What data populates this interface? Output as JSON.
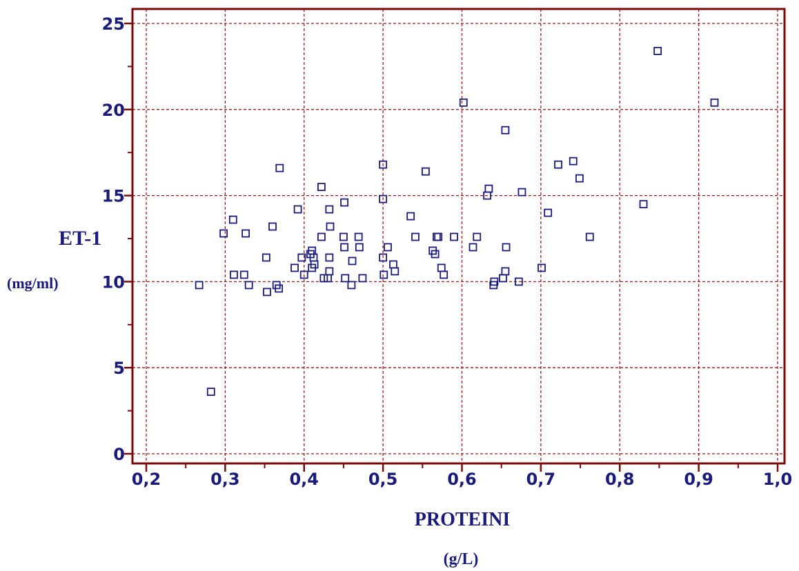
{
  "chart_data": {
    "type": "scatter",
    "xlabel": "PROTEINI",
    "xunit": "(g/L)",
    "ylabel": "ET-1",
    "yunit": "(mg/ml)",
    "xlim": [
      0.2,
      1.0
    ],
    "ylim": [
      0,
      25
    ],
    "grid": true,
    "x_ticks": [
      "0,2",
      "0,3",
      "0,4",
      "0,5",
      "0,6",
      "0,7",
      "0,8",
      "0,9",
      "1,0"
    ],
    "y_ticks": [
      "0",
      "5",
      "10",
      "15",
      "20",
      "25"
    ],
    "colors": {
      "frame": "#7a0a0a",
      "grid": "#9a1a1a",
      "points": "#1a1a7a",
      "text": "#1a1a7a"
    },
    "points": [
      [
        0.267,
        9.8
      ],
      [
        0.282,
        3.6
      ],
      [
        0.298,
        12.8
      ],
      [
        0.31,
        13.6
      ],
      [
        0.311,
        10.4
      ],
      [
        0.324,
        10.4
      ],
      [
        0.326,
        12.8
      ],
      [
        0.33,
        9.8
      ],
      [
        0.352,
        11.4
      ],
      [
        0.353,
        9.4
      ],
      [
        0.36,
        13.2
      ],
      [
        0.365,
        9.8
      ],
      [
        0.368,
        9.6
      ],
      [
        0.369,
        16.6
      ],
      [
        0.388,
        10.8
      ],
      [
        0.392,
        14.2
      ],
      [
        0.397,
        11.4
      ],
      [
        0.4,
        10.4
      ],
      [
        0.408,
        11.6
      ],
      [
        0.41,
        11.8
      ],
      [
        0.41,
        10.8
      ],
      [
        0.412,
        11.4
      ],
      [
        0.413,
        11.0
      ],
      [
        0.422,
        12.6
      ],
      [
        0.422,
        15.5
      ],
      [
        0.425,
        10.2
      ],
      [
        0.43,
        10.2
      ],
      [
        0.432,
        10.6
      ],
      [
        0.432,
        11.4
      ],
      [
        0.432,
        14.2
      ],
      [
        0.433,
        13.2
      ],
      [
        0.45,
        12.6
      ],
      [
        0.451,
        12.0
      ],
      [
        0.451,
        14.6
      ],
      [
        0.452,
        10.2
      ],
      [
        0.46,
        9.8
      ],
      [
        0.461,
        11.2
      ],
      [
        0.469,
        12.6
      ],
      [
        0.47,
        12.0
      ],
      [
        0.474,
        10.2
      ],
      [
        0.5,
        16.8
      ],
      [
        0.5,
        14.8
      ],
      [
        0.5,
        11.4
      ],
      [
        0.501,
        10.4
      ],
      [
        0.506,
        12.0
      ],
      [
        0.513,
        11.0
      ],
      [
        0.515,
        10.6
      ],
      [
        0.535,
        13.8
      ],
      [
        0.541,
        12.6
      ],
      [
        0.554,
        16.4
      ],
      [
        0.563,
        11.8
      ],
      [
        0.566,
        11.6
      ],
      [
        0.568,
        12.6
      ],
      [
        0.57,
        12.6
      ],
      [
        0.574,
        10.8
      ],
      [
        0.577,
        10.4
      ],
      [
        0.59,
        12.6
      ],
      [
        0.602,
        20.4
      ],
      [
        0.614,
        12.0
      ],
      [
        0.619,
        12.6
      ],
      [
        0.632,
        15.0
      ],
      [
        0.634,
        15.4
      ],
      [
        0.64,
        9.8
      ],
      [
        0.641,
        10.0
      ],
      [
        0.652,
        10.2
      ],
      [
        0.655,
        10.6
      ],
      [
        0.655,
        18.8
      ],
      [
        0.656,
        12.0
      ],
      [
        0.672,
        10.0
      ],
      [
        0.676,
        15.2
      ],
      [
        0.701,
        10.8
      ],
      [
        0.709,
        14.0
      ],
      [
        0.722,
        16.8
      ],
      [
        0.741,
        17.0
      ],
      [
        0.749,
        16.0
      ],
      [
        0.762,
        12.6
      ],
      [
        0.83,
        14.5
      ],
      [
        0.848,
        23.4
      ],
      [
        0.92,
        20.4
      ]
    ]
  }
}
